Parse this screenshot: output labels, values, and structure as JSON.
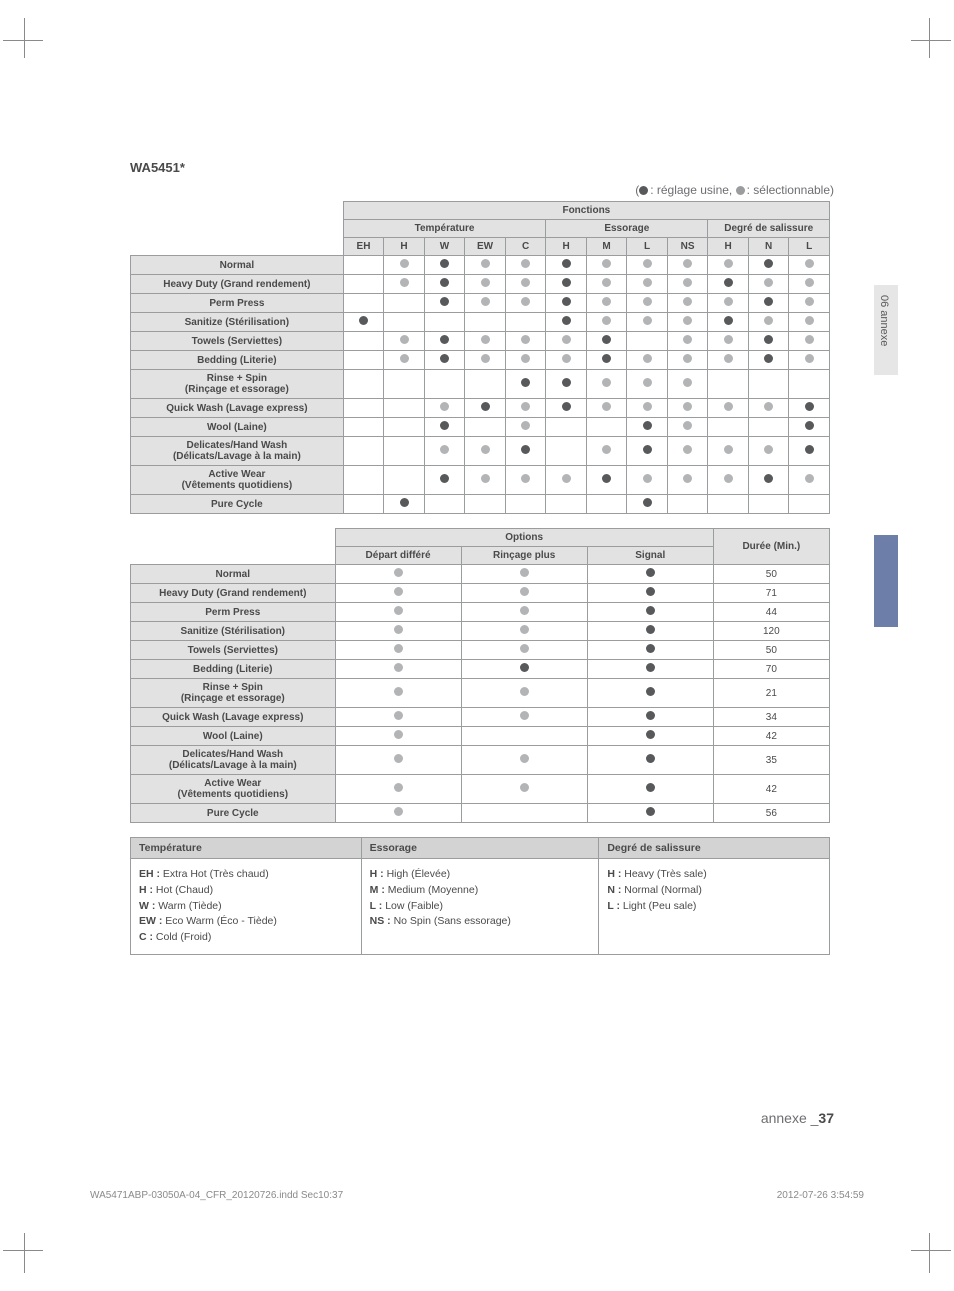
{
  "model": "WA5451*",
  "legend_factory": ": réglage usine,",
  "legend_selectable": ": sélectionnable)",
  "side_tab": "06  annexe",
  "functions_header": "Fonctions",
  "group_headers": {
    "temp": "Température",
    "spin": "Essorage",
    "soil": "Degré de salissure"
  },
  "temp_cols": [
    "EH",
    "H",
    "W",
    "EW",
    "C"
  ],
  "spin_cols": [
    "H",
    "M",
    "L",
    "NS"
  ],
  "soil_cols": [
    "H",
    "N",
    "L"
  ],
  "cycles": [
    "Normal",
    "Heavy Duty (Grand rendement)",
    "Perm Press",
    "Sanitize (Stérilisation)",
    "Towels (Serviettes)",
    "Bedding (Literie)",
    "Rinse + Spin\n(Rinçage et essorage)",
    "Quick Wash (Lavage express)",
    "Wool (Laine)",
    "Delicates/Hand Wash\n(Délicats/Lavage à la main)",
    "Active Wear\n(Vêtements quotidiens)",
    "Pure Cycle"
  ],
  "functions_matrix": [
    [
      "",
      "s",
      "f",
      "s",
      "s",
      "f",
      "s",
      "s",
      "s",
      "s",
      "f",
      "s"
    ],
    [
      "",
      "s",
      "f",
      "s",
      "s",
      "f",
      "s",
      "s",
      "s",
      "f",
      "s",
      "s"
    ],
    [
      "",
      "",
      "f",
      "s",
      "s",
      "f",
      "s",
      "s",
      "s",
      "s",
      "f",
      "s"
    ],
    [
      "f",
      "",
      "",
      "",
      "",
      "f",
      "s",
      "s",
      "s",
      "f",
      "s",
      "s"
    ],
    [
      "",
      "s",
      "f",
      "s",
      "s",
      "s",
      "f",
      "",
      "s",
      "s",
      "f",
      "s"
    ],
    [
      "",
      "s",
      "f",
      "s",
      "s",
      "s",
      "f",
      "s",
      "s",
      "s",
      "f",
      "s"
    ],
    [
      "",
      "",
      "",
      "",
      "f",
      "f",
      "s",
      "s",
      "s",
      "",
      "",
      ""
    ],
    [
      "",
      "",
      "s",
      "f",
      "s",
      "f",
      "s",
      "s",
      "s",
      "s",
      "s",
      "f"
    ],
    [
      "",
      "",
      "f",
      "",
      "s",
      "",
      "",
      "f",
      "s",
      "",
      "",
      "f"
    ],
    [
      "",
      "",
      "s",
      "s",
      "f",
      "",
      "s",
      "f",
      "s",
      "s",
      "s",
      "f"
    ],
    [
      "",
      "",
      "f",
      "s",
      "s",
      "s",
      "f",
      "s",
      "s",
      "s",
      "f",
      "s"
    ],
    [
      "",
      "f",
      "",
      "",
      "",
      "",
      "",
      "f",
      "",
      "",
      "",
      ""
    ]
  ],
  "options_header": "Options",
  "options_cols": {
    "delay": "Départ différé",
    "extra": "Rinçage plus",
    "signal": "Signal",
    "time": "Durée (Min.)"
  },
  "options_matrix": [
    [
      "s",
      "s",
      "f",
      "50"
    ],
    [
      "s",
      "s",
      "f",
      "71"
    ],
    [
      "s",
      "s",
      "f",
      "44"
    ],
    [
      "s",
      "s",
      "f",
      "120"
    ],
    [
      "s",
      "s",
      "f",
      "50"
    ],
    [
      "s",
      "f",
      "f",
      "70"
    ],
    [
      "s",
      "s",
      "f",
      "21"
    ],
    [
      "s",
      "s",
      "f",
      "34"
    ],
    [
      "s",
      "",
      "f",
      "42"
    ],
    [
      "s",
      "s",
      "f",
      "35"
    ],
    [
      "s",
      "s",
      "f",
      "42"
    ],
    [
      "s",
      "",
      "f",
      "56"
    ]
  ],
  "legend3": {
    "temp_title": "Température",
    "spin_title": "Essorage",
    "soil_title": "Degré de salissure",
    "temp_body": "<b>EH :</b> Extra Hot (Très chaud)<br><b>H :</b> Hot (Chaud)<br><b>W :</b> Warm (Tiède)<br><b>EW :</b> Eco Warm (Éco - Tiède)<br><b>C :</b> Cold (Froid)",
    "spin_body": "<b>H :</b> High (Élevée)<br><b>M :</b> Medium (Moyenne)<br><b>L :</b> Low (Faible)<br><b>NS :</b> No Spin (Sans essorage)",
    "soil_body": "<b>H :</b> Heavy (Très sale)<br><b>N :</b> Normal (Normal)<br><b>L :</b> Light (Peu sale)"
  },
  "footer": {
    "annex": "annexe _",
    "page": "37"
  },
  "print": {
    "file": "WA5471ABP-03050A-04_CFR_20120726.indd   Sec10:37",
    "stamp": "2012-07-26      3:54:59"
  }
}
